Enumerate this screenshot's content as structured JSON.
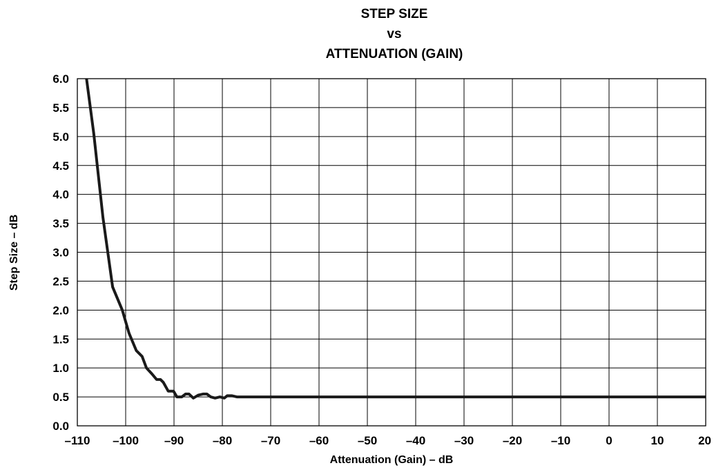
{
  "chart_data": {
    "type": "line",
    "title": [
      "STEP SIZE",
      "vs",
      "ATTENUATION (GAIN)"
    ],
    "xlabel": "Attenuation (Gain) – dB",
    "ylabel": "Step Size – dB",
    "xlim": [
      -110,
      20
    ],
    "ylim": [
      0,
      6
    ],
    "xticks": [
      -110,
      -100,
      -90,
      -80,
      -70,
      -60,
      -50,
      -40,
      -30,
      -20,
      -10,
      0,
      10,
      20
    ],
    "yticks": [
      0,
      0.5,
      1,
      1.5,
      2,
      2.5,
      3,
      3.5,
      4,
      4.5,
      5,
      5.5,
      6
    ],
    "xtick_labels": [
      "–110",
      "–100",
      "–90",
      "–80",
      "–70",
      "–60",
      "–50",
      "–40",
      "–30",
      "–20",
      "–10",
      "0",
      "10",
      "20"
    ],
    "ytick_labels": [
      "0.0",
      "0.5",
      "1.0",
      "1.5",
      "2.0",
      "2.5",
      "3.0",
      "3.5",
      "4.0",
      "4.5",
      "5.0",
      "5.5",
      "6.0"
    ],
    "grid": true,
    "series": [
      {
        "color": "#1a1a1a",
        "x": [
          -108.1,
          -106.6,
          -104.7,
          -102.7,
          -100.7,
          -99.3,
          -97.8,
          -96.6,
          -95.7,
          -94.6,
          -93.6,
          -92.8,
          -92.2,
          -91.2,
          -90.1,
          -89.4,
          -88.4,
          -87.6,
          -86.9,
          -86.0,
          -85.0,
          -84.0,
          -83.2,
          -82.4,
          -81.5,
          -80.5,
          -79.6,
          -79.0,
          -78.0,
          -77.0,
          -75.0,
          -70.0,
          -60.0,
          -50.0,
          -40.0,
          -30.0,
          -20.0,
          -10.0,
          0.0,
          10.0,
          20.0
        ],
        "y": [
          6.0,
          5.05,
          3.6,
          2.4,
          2.0,
          1.6,
          1.3,
          1.2,
          1.0,
          0.9,
          0.8,
          0.8,
          0.75,
          0.6,
          0.6,
          0.5,
          0.5,
          0.55,
          0.55,
          0.48,
          0.53,
          0.55,
          0.55,
          0.5,
          0.48,
          0.5,
          0.48,
          0.52,
          0.52,
          0.5,
          0.5,
          0.5,
          0.5,
          0.5,
          0.5,
          0.5,
          0.5,
          0.5,
          0.5,
          0.5,
          0.5
        ]
      }
    ]
  }
}
